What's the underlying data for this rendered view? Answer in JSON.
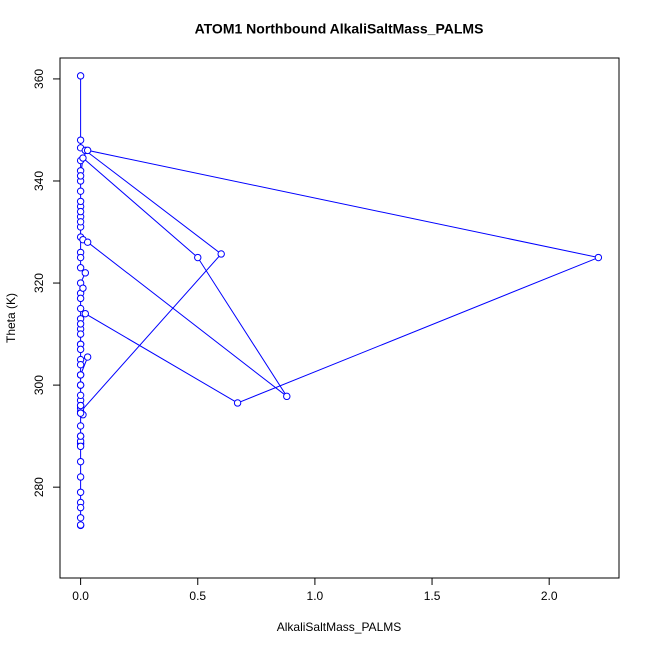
{
  "chart_data": {
    "type": "line",
    "title": "ATOM1 Northbound AlkaliSaltMass_PALMS",
    "x_label": "AlkaliSaltMass_PALMS",
    "y_label": "Theta (K)",
    "series": [
      {
        "color": "#0000ff",
        "x": [
          0,
          0,
          0,
          0.02,
          0.6,
          0,
          0,
          0,
          0,
          0,
          0,
          0,
          0,
          0.03,
          0,
          0,
          0,
          0.01,
          0,
          0,
          0,
          0,
          0.02,
          0.67,
          2.21,
          0.03,
          0,
          0,
          0,
          0,
          0,
          0,
          0,
          0,
          0.01,
          0.03,
          0.88,
          0.5,
          0.01,
          0,
          0,
          0,
          0,
          0,
          0,
          0,
          0.02,
          0,
          0,
          0.01,
          0,
          0,
          0,
          0,
          0,
          0,
          0,
          0,
          0,
          0,
          0,
          0,
          0,
          0,
          0,
          0,
          0,
          0,
          0,
          0,
          0,
          0
        ],
        "values": [
          360.6,
          348,
          346.5,
          346,
          325.7,
          294.8,
          290,
          288.5,
          289,
          292,
          295.5,
          300,
          305,
          305.5,
          302,
          297,
          294.5,
          294.2,
          296,
          308,
          311,
          313,
          314,
          296.5,
          325,
          346,
          344,
          342,
          340,
          338,
          335,
          333,
          331,
          329,
          328.5,
          328,
          297.8,
          325,
          344.5,
          341,
          336,
          334,
          332,
          326,
          325,
          323,
          322,
          320,
          318,
          319,
          317,
          315,
          312,
          310,
          308,
          307,
          304,
          302,
          300,
          298,
          296,
          294.5,
          290,
          288,
          285,
          282,
          279,
          277,
          276,
          274,
          272.5,
          272.6
        ]
      }
    ],
    "xlim": [
      -0.088,
      2.298
    ],
    "ylim": [
      262.2,
      364.1
    ],
    "xticks": [
      {
        "value": 0,
        "label": "0.0"
      },
      {
        "value": 0.5,
        "label": "0.5"
      },
      {
        "value": 1,
        "label": "1.0"
      },
      {
        "value": 1.5,
        "label": "1.5"
      },
      {
        "value": 2,
        "label": "2.0"
      }
    ],
    "yticks": [
      280,
      300,
      320,
      340,
      360
    ]
  }
}
